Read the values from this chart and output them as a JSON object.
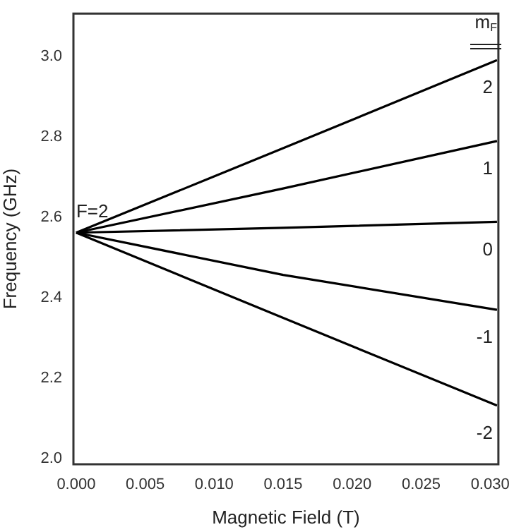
{
  "chart_data": {
    "type": "line",
    "xlabel": "Magnetic Field (T)",
    "ylabel": "Frequency (GHz)",
    "legend_title": "m$_{F}$",
    "x": [
      0,
      0.015,
      0.0305
    ],
    "series": [
      {
        "name": "2",
        "color": "#000000",
        "values": [
          2.562,
          2.772,
          2.991
        ]
      },
      {
        "name": "1",
        "color": "#000000",
        "values": [
          2.562,
          2.672,
          2.79
        ]
      },
      {
        "name": "0",
        "color": "#000000",
        "values": [
          2.562,
          2.574,
          2.589
        ]
      },
      {
        "name": "-1",
        "color": "#000000",
        "values": [
          2.562,
          2.457,
          2.37
        ]
      },
      {
        "name": "-2",
        "color": "#000000",
        "values": [
          2.562,
          2.35,
          2.132
        ]
      }
    ],
    "annotations": [
      {
        "text": "F=2",
        "x": 0,
        "y": 2.562
      }
    ],
    "xlim": [
      -0.0002,
      0.0306
    ],
    "ylim": [
      1.986,
      3.107
    ],
    "xticks": [
      {
        "value": 0,
        "label": "0.000"
      },
      {
        "value": 0.005,
        "label": "0.005"
      },
      {
        "value": 0.01,
        "label": "0.010"
      },
      {
        "value": 0.015,
        "label": "0.015"
      },
      {
        "value": 0.02,
        "label": "0.020"
      },
      {
        "value": 0.025,
        "label": "0.025"
      },
      {
        "value": 0.03,
        "label": "0.030"
      }
    ],
    "yticks": [
      {
        "value": 2,
        "label": "2.0"
      },
      {
        "value": 2.2,
        "label": "2.2"
      },
      {
        "value": 2.4,
        "label": "2.4"
      },
      {
        "value": 2.6,
        "label": "2.6"
      },
      {
        "value": 2.8,
        "label": "2.8"
      },
      {
        "value": 3,
        "label": "3.0"
      }
    ],
    "grid": false,
    "legend": false,
    "marker": "none",
    "line_style": "solid"
  }
}
